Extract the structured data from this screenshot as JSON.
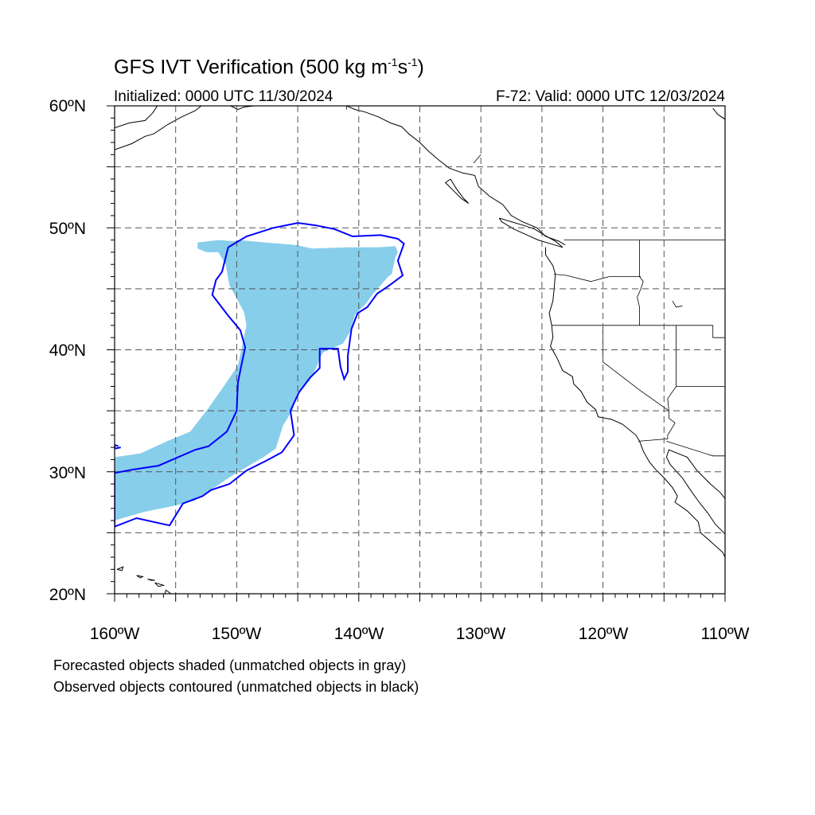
{
  "title": {
    "main": "GFS IVT Verification (500 kg m",
    "exp1": "-1",
    "mid": "s",
    "exp2": "-1",
    "end": ")"
  },
  "subtitle": {
    "initialized": "Initialized: 0000 UTC 11/30/2024",
    "valid": "F-72: Valid: 0000 UTC 12/03/2024"
  },
  "axes": {
    "lat_labels": [
      "60ºN",
      "50ºN",
      "40ºN",
      "30ºN",
      "20ºN"
    ],
    "lon_labels": [
      "160ºW",
      "150ºW",
      "140ºW",
      "130ºW",
      "120ºW",
      "110ºW"
    ]
  },
  "notes": {
    "forecast": "Forecasted objects shaded (unmatched objects in gray)",
    "observed": "Observed objects contoured (unmatched objects in black)"
  },
  "colors": {
    "forecast_fill": "#87ceeb",
    "observed_contour": "#0000ff",
    "coastline": "#000000",
    "grid": "#555555"
  },
  "map_extent": {
    "lon_min": -160,
    "lon_max": -110,
    "lat_min": 20,
    "lat_max": 60
  },
  "forecast_object": [
    [
      -153.2,
      48.8
    ],
    [
      -151.5,
      49.0
    ],
    [
      -150.2,
      48.9
    ],
    [
      -149.8,
      49.0
    ],
    [
      -147.7,
      48.8
    ],
    [
      -145.2,
      48.6
    ],
    [
      -143.8,
      48.3
    ],
    [
      -141.0,
      48.4
    ],
    [
      -138.5,
      48.4
    ],
    [
      -137.0,
      48.5
    ],
    [
      -136.8,
      48.0
    ],
    [
      -137.0,
      47.6
    ],
    [
      -137.3,
      46.2
    ],
    [
      -137.6,
      46.0
    ],
    [
      -138.9,
      44.5
    ],
    [
      -139.4,
      43.8
    ],
    [
      -140.3,
      42.9
    ],
    [
      -140.7,
      41.5
    ],
    [
      -141.3,
      40.5
    ],
    [
      -142.9,
      39.8
    ],
    [
      -143.1,
      39.5
    ],
    [
      -143.5,
      38.5
    ],
    [
      -144.0,
      37.5
    ],
    [
      -144.7,
      36.8
    ],
    [
      -145.2,
      36.0
    ],
    [
      -145.4,
      35.1
    ],
    [
      -146.2,
      33.8
    ],
    [
      -146.8,
      31.9
    ],
    [
      -147.8,
      31.2
    ],
    [
      -149.0,
      30.5
    ],
    [
      -150.5,
      29.6
    ],
    [
      -152.0,
      28.6
    ],
    [
      -153.5,
      27.6
    ],
    [
      -155.2,
      27.2
    ],
    [
      -157.6,
      26.7
    ],
    [
      -160.0,
      26.0
    ],
    [
      -160.0,
      31.2
    ],
    [
      -157.9,
      31.5
    ],
    [
      -155.7,
      32.5
    ],
    [
      -153.8,
      33.3
    ],
    [
      -152.4,
      35.1
    ],
    [
      -151.2,
      36.8
    ],
    [
      -149.9,
      38.7
    ],
    [
      -149.2,
      42.0
    ],
    [
      -149.4,
      43.1
    ],
    [
      -150.6,
      45.3
    ],
    [
      -150.9,
      47.0
    ],
    [
      -151.5,
      48.0
    ],
    [
      -152.5,
      48.0
    ],
    [
      -153.2,
      48.3
    ]
  ],
  "observed_object": [
    [
      -155.5,
      25.6
    ],
    [
      -158.2,
      26.2
    ],
    [
      -160.0,
      25.5
    ],
    [
      -160.0,
      29.9
    ],
    [
      -158.4,
      30.2
    ],
    [
      -156.4,
      30.5
    ],
    [
      -154.8,
      31.2
    ],
    [
      -153.4,
      31.8
    ],
    [
      -152.3,
      32.1
    ],
    [
      -150.8,
      33.3
    ],
    [
      -150.0,
      35.0
    ],
    [
      -149.9,
      37.3
    ],
    [
      -149.6,
      38.8
    ],
    [
      -149.3,
      40.2
    ],
    [
      -149.7,
      41.6
    ],
    [
      -150.7,
      42.8
    ],
    [
      -152.0,
      44.5
    ],
    [
      -151.7,
      45.7
    ],
    [
      -151.2,
      46.4
    ],
    [
      -150.7,
      48.4
    ],
    [
      -149.2,
      49.3
    ],
    [
      -147.0,
      50.0
    ],
    [
      -145.0,
      50.4
    ],
    [
      -143.5,
      50.2
    ],
    [
      -142.0,
      49.9
    ],
    [
      -140.5,
      49.3
    ],
    [
      -138.2,
      49.4
    ],
    [
      -136.8,
      49.1
    ],
    [
      -136.3,
      48.7
    ],
    [
      -136.8,
      47.3
    ],
    [
      -136.4,
      46.1
    ],
    [
      -137.6,
      45.2
    ],
    [
      -138.5,
      44.6
    ],
    [
      -139.3,
      43.5
    ],
    [
      -140.1,
      43.0
    ],
    [
      -140.6,
      41.7
    ],
    [
      -140.9,
      39.5
    ],
    [
      -140.9,
      38.2
    ],
    [
      -141.2,
      37.6
    ],
    [
      -141.5,
      38.6
    ],
    [
      -141.7,
      40.1
    ],
    [
      -143.2,
      40.1
    ],
    [
      -143.2,
      38.5
    ],
    [
      -144.0,
      37.7
    ],
    [
      -144.9,
      36.5
    ],
    [
      -145.6,
      35.0
    ],
    [
      -145.3,
      33.0
    ],
    [
      -146.3,
      31.6
    ],
    [
      -147.6,
      30.9
    ],
    [
      -149.2,
      30.1
    ],
    [
      -150.6,
      29.0
    ],
    [
      -152.1,
      28.5
    ],
    [
      -152.8,
      28.0
    ],
    [
      -154.4,
      27.4
    ]
  ],
  "observed_fragment": [
    [
      -159.7,
      32.1
    ],
    [
      -160.0,
      32.2
    ],
    [
      -160.0,
      31.9
    ],
    [
      -159.5,
      32.0
    ]
  ],
  "coastlines": [
    [
      [
        -110.0,
        58.9
      ],
      [
        -110.6,
        59.3
      ],
      [
        -111.0,
        59.8
      ]
    ],
    [
      [
        -160.0,
        58.2
      ],
      [
        -158.8,
        58.6
      ],
      [
        -157.5,
        58.8
      ],
      [
        -156.9,
        59.4
      ],
      [
        -156.5,
        60.0
      ]
    ],
    [
      [
        -160.0,
        56.4
      ],
      [
        -158.6,
        56.9
      ],
      [
        -157.5,
        57.5
      ],
      [
        -156.8,
        57.7
      ],
      [
        -155.6,
        58.5
      ],
      [
        -154.5,
        59.1
      ],
      [
        -153.4,
        59.6
      ],
      [
        -152.9,
        60.0
      ]
    ],
    [
      [
        -150.5,
        60.0
      ],
      [
        -149.9,
        59.7
      ],
      [
        -149.4,
        59.9
      ],
      [
        -148.6,
        60.0
      ]
    ],
    [
      [
        -141.0,
        60.0
      ],
      [
        -140.3,
        59.7
      ],
      [
        -139.5,
        59.5
      ],
      [
        -138.4,
        59.1
      ],
      [
        -137.4,
        58.6
      ],
      [
        -136.5,
        58.3
      ],
      [
        -135.9,
        57.7
      ],
      [
        -135.0,
        57.0
      ],
      [
        -134.3,
        56.3
      ],
      [
        -133.5,
        55.6
      ],
      [
        -132.6,
        54.9
      ],
      [
        -131.5,
        54.5
      ],
      [
        -130.5,
        54.3
      ],
      [
        -130.2,
        53.4
      ],
      [
        -129.3,
        52.6
      ],
      [
        -128.2,
        51.9
      ],
      [
        -127.5,
        51.0
      ],
      [
        -126.6,
        50.5
      ],
      [
        -125.4,
        50.0
      ],
      [
        -124.7,
        49.3
      ],
      [
        -123.6,
        48.9
      ],
      [
        -123.1,
        48.6
      ]
    ],
    [
      [
        -124.7,
        48.4
      ],
      [
        -124.7,
        47.8
      ],
      [
        -124.1,
        46.9
      ],
      [
        -123.9,
        46.2
      ],
      [
        -124.0,
        45.0
      ],
      [
        -124.1,
        44.0
      ],
      [
        -124.4,
        43.0
      ],
      [
        -124.2,
        42.0
      ],
      [
        -124.1,
        41.0
      ],
      [
        -124.3,
        40.3
      ],
      [
        -123.8,
        39.4
      ],
      [
        -123.3,
        38.3
      ],
      [
        -122.5,
        37.8
      ],
      [
        -122.4,
        37.2
      ],
      [
        -121.8,
        36.6
      ],
      [
        -121.3,
        35.7
      ],
      [
        -120.6,
        35.1
      ],
      [
        -120.4,
        34.5
      ],
      [
        -119.3,
        34.3
      ],
      [
        -118.4,
        33.9
      ],
      [
        -117.3,
        33.0
      ],
      [
        -117.0,
        32.5
      ],
      [
        -116.7,
        31.7
      ],
      [
        -116.2,
        30.8
      ],
      [
        -115.7,
        30.2
      ],
      [
        -115.0,
        29.5
      ],
      [
        -114.3,
        28.7
      ],
      [
        -113.9,
        28.0
      ],
      [
        -114.1,
        27.5
      ],
      [
        -113.1,
        26.8
      ],
      [
        -112.2,
        25.9
      ],
      [
        -112.0,
        25.0
      ],
      [
        -111.2,
        24.3
      ],
      [
        -110.2,
        23.4
      ],
      [
        -110.0,
        23.0
      ]
    ],
    [
      [
        -110.0,
        27.8
      ],
      [
        -110.4,
        28.3
      ],
      [
        -111.2,
        29.0
      ],
      [
        -112.3,
        30.1
      ],
      [
        -113.1,
        31.2
      ],
      [
        -114.6,
        31.8
      ],
      [
        -114.8,
        31.2
      ],
      [
        -114.5,
        30.6
      ],
      [
        -113.5,
        29.5
      ],
      [
        -112.9,
        28.6
      ],
      [
        -112.2,
        27.6
      ],
      [
        -111.4,
        26.6
      ],
      [
        -110.8,
        25.7
      ],
      [
        -110.0,
        24.9
      ]
    ],
    [
      [
        -132.5,
        54.0
      ],
      [
        -132.0,
        53.2
      ],
      [
        -131.4,
        52.4
      ],
      [
        -131.0,
        52.0
      ],
      [
        -131.6,
        52.4
      ],
      [
        -132.3,
        53.1
      ],
      [
        -132.9,
        53.7
      ],
      [
        -132.5,
        54.0
      ]
    ],
    [
      [
        -128.5,
        50.8
      ],
      [
        -127.5,
        50.5
      ],
      [
        -126.5,
        50.2
      ],
      [
        -125.6,
        49.9
      ],
      [
        -124.8,
        49.4
      ],
      [
        -123.9,
        48.9
      ],
      [
        -123.3,
        48.4
      ],
      [
        -124.3,
        48.7
      ],
      [
        -125.3,
        49.0
      ],
      [
        -126.2,
        49.4
      ],
      [
        -127.3,
        49.9
      ],
      [
        -128.3,
        50.5
      ],
      [
        -128.5,
        50.8
      ]
    ],
    [
      [
        -155.9,
        19.9
      ],
      [
        -155.8,
        20.3
      ],
      [
        -155.1,
        19.8
      ],
      [
        -155.6,
        19.0
      ],
      [
        -155.9,
        19.9
      ]
    ],
    [
      [
        -159.8,
        22.0
      ],
      [
        -159.3,
        22.2
      ],
      [
        -159.4,
        21.9
      ],
      [
        -159.8,
        22.0
      ]
    ],
    [
      [
        -158.2,
        21.5
      ],
      [
        -157.7,
        21.4
      ],
      [
        -157.9,
        21.3
      ],
      [
        -158.2,
        21.5
      ]
    ],
    [
      [
        -157.3,
        21.2
      ],
      [
        -156.7,
        21.1
      ],
      [
        -157.0,
        21.1
      ],
      [
        -157.3,
        21.2
      ]
    ],
    [
      [
        -156.7,
        20.9
      ],
      [
        -156.0,
        20.7
      ],
      [
        -156.4,
        20.6
      ],
      [
        -156.7,
        20.9
      ]
    ]
  ],
  "borders": [
    [
      [
        -141.0,
        60.0
      ],
      [
        -141.0,
        59.7
      ]
    ],
    [
      [
        -130.0,
        56.0
      ],
      [
        -130.6,
        55.3
      ]
    ],
    [
      [
        -123.2,
        49.0
      ],
      [
        -110.0,
        49.0
      ]
    ],
    [
      [
        -124.0,
        46.2
      ],
      [
        -123.0,
        46.1
      ],
      [
        -121.0,
        45.6
      ],
      [
        -119.5,
        46.0
      ],
      [
        -116.9,
        46.0
      ]
    ],
    [
      [
        -117.0,
        49.0
      ],
      [
        -117.0,
        46.0
      ],
      [
        -116.7,
        45.6
      ],
      [
        -116.9,
        45.0
      ],
      [
        -117.2,
        44.3
      ],
      [
        -117.0,
        43.5
      ],
      [
        -117.0,
        42.0
      ]
    ],
    [
      [
        -124.2,
        42.0
      ],
      [
        -111.0,
        42.0
      ]
    ],
    [
      [
        -120.0,
        42.0
      ],
      [
        -120.0,
        39.0
      ],
      [
        -117.0,
        36.7
      ],
      [
        -114.6,
        35.0
      ]
    ],
    [
      [
        -114.0,
        42.0
      ],
      [
        -114.0,
        37.0
      ],
      [
        -114.7,
        36.0
      ],
      [
        -114.6,
        35.0
      ],
      [
        -114.6,
        34.4
      ],
      [
        -114.1,
        34.0
      ],
      [
        -114.7,
        33.0
      ],
      [
        -114.7,
        32.7
      ],
      [
        -117.1,
        32.5
      ]
    ],
    [
      [
        -114.8,
        32.5
      ],
      [
        -111.0,
        31.3
      ],
      [
        -110.0,
        31.3
      ]
    ],
    [
      [
        -111.0,
        42.0
      ],
      [
        -111.0,
        41.0
      ],
      [
        -110.0,
        41.0
      ]
    ],
    [
      [
        -111.0,
        45.0
      ],
      [
        -110.0,
        45.0
      ]
    ],
    [
      [
        -114.0,
        37.0
      ],
      [
        -110.0,
        37.0
      ]
    ],
    [
      [
        -114.3,
        44.0
      ],
      [
        -114.0,
        43.5
      ],
      [
        -113.5,
        43.6
      ]
    ]
  ]
}
